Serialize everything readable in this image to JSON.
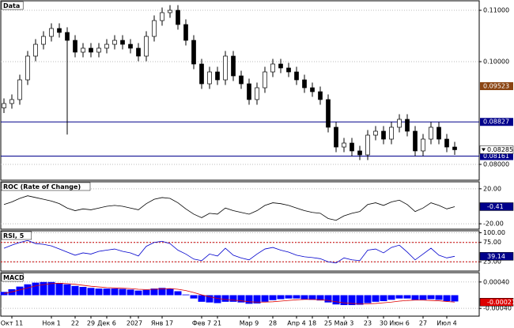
{
  "chart_data": [
    {
      "type": "candlestick",
      "title": "Data",
      "categories": [
        null,
        "Окт 11",
        null,
        null,
        null,
        null,
        "Ноя 1",
        null,
        null,
        "22",
        null,
        "29",
        null,
        "Дек 6",
        null,
        null,
        "20",
        "27",
        null,
        null,
        "Янв 17",
        null,
        null,
        null,
        null,
        "Фев 7",
        null,
        "21",
        null,
        null,
        null,
        "Мар 9",
        null,
        null,
        "28",
        null,
        null,
        "Апр 4",
        null,
        "18",
        null,
        "25",
        null,
        "Май 3",
        null,
        null,
        "23",
        null,
        "30",
        null,
        "Июн 6",
        null,
        null,
        "27",
        null,
        null,
        "Июл 4",
        null
      ],
      "open": [
        0.091,
        0.09185,
        0.09262,
        0.09646,
        0.10108,
        0.10338,
        0.10492,
        0.10646,
        0.10569,
        0.10415,
        0.10185,
        0.10262,
        0.10185,
        0.10262,
        0.10338,
        0.10415,
        0.10338,
        0.10262,
        0.10108,
        0.10492,
        0.108,
        0.10954,
        0.11,
        0.10723,
        0.10415,
        0.09954,
        0.09569,
        0.098,
        0.09646,
        0.10108,
        0.09723,
        0.09569,
        0.09262,
        0.09492,
        0.098,
        0.09954,
        0.09877,
        0.098,
        0.09646,
        0.09492,
        0.09415,
        0.09262,
        0.08723,
        0.08338,
        0.08415,
        0.08262,
        0.08185,
        0.08569,
        0.08646,
        0.08492,
        0.08723,
        0.08877,
        0.08646,
        0.08262,
        0.08492,
        0.08723,
        0.08492,
        0.08338
      ],
      "high": [
        0.09285,
        0.09362,
        0.09746,
        0.10208,
        0.10438,
        0.10592,
        0.10746,
        0.10746,
        0.10669,
        0.10515,
        0.10362,
        0.10362,
        0.10362,
        0.10438,
        0.10515,
        0.10515,
        0.10438,
        0.10362,
        0.10592,
        0.109,
        0.11054,
        0.111,
        0.111,
        0.10823,
        0.10515,
        0.10054,
        0.099,
        0.099,
        0.10208,
        0.10208,
        0.09823,
        0.09669,
        0.09592,
        0.099,
        0.10054,
        0.10054,
        0.09977,
        0.099,
        0.09746,
        0.09592,
        0.09515,
        0.09362,
        0.08823,
        0.08515,
        0.08515,
        0.08362,
        0.08669,
        0.08746,
        0.08746,
        0.08823,
        0.08977,
        0.08977,
        0.08746,
        0.08592,
        0.08823,
        0.08823,
        0.08592,
        0.08438
      ],
      "low": [
        0.09,
        0.09085,
        0.09162,
        0.09546,
        0.10008,
        0.10238,
        0.10392,
        0.10469,
        0.0858,
        0.10085,
        0.10085,
        0.10085,
        0.10085,
        0.10162,
        0.10238,
        0.10238,
        0.10162,
        0.10008,
        0.10008,
        0.10392,
        0.107,
        0.10854,
        0.10623,
        0.10315,
        0.09854,
        0.09469,
        0.09469,
        0.09546,
        0.09546,
        0.09623,
        0.09469,
        0.09162,
        0.09162,
        0.09392,
        0.097,
        0.09777,
        0.097,
        0.09546,
        0.09392,
        0.09315,
        0.09162,
        0.08623,
        0.08238,
        0.08238,
        0.08162,
        0.08085,
        0.08085,
        0.08469,
        0.08392,
        0.08392,
        0.08623,
        0.08546,
        0.08162,
        0.08162,
        0.08392,
        0.08392,
        0.08238,
        0.08185
      ],
      "close": [
        0.09185,
        0.09262,
        0.09646,
        0.10108,
        0.10338,
        0.10492,
        0.10646,
        0.10569,
        0.10415,
        0.10185,
        0.10262,
        0.10185,
        0.10262,
        0.10338,
        0.10415,
        0.10338,
        0.10262,
        0.10108,
        0.10492,
        0.108,
        0.10954,
        0.11,
        0.10723,
        0.10415,
        0.09954,
        0.09569,
        0.098,
        0.09646,
        0.10108,
        0.09723,
        0.09569,
        0.09262,
        0.09492,
        0.098,
        0.09954,
        0.09877,
        0.098,
        0.09646,
        0.09492,
        0.09415,
        0.09262,
        0.08723,
        0.08338,
        0.08415,
        0.08262,
        0.08185,
        0.08569,
        0.08646,
        0.08492,
        0.08723,
        0.08877,
        0.08646,
        0.08262,
        0.08492,
        0.08723,
        0.08492,
        0.08338,
        0.08285
      ],
      "ylim": [
        0.07692,
        0.11185
      ],
      "yticks": [
        {
          "value": 0.08,
          "label": "0.08000"
        },
        {
          "value": 0.1,
          "label": "0.10000"
        },
        {
          "value": 0.11,
          "label": "0.11000"
        }
      ],
      "levels": [
        0.08827,
        0.08161
      ],
      "level_color": "#00008b",
      "price_labels": [
        {
          "value": 0.09523,
          "color": "#8b4513"
        }
      ],
      "grid": true
    },
    {
      "type": "line",
      "title": "ROC (Rate of Change)",
      "color": "#000000",
      "values": [
        2,
        5,
        9,
        12,
        10,
        8,
        6,
        3,
        -2,
        -5,
        -3,
        -4,
        -2,
        0,
        1,
        0,
        -2,
        -4,
        3,
        8,
        10,
        9,
        4,
        -3,
        -9,
        -13,
        -8,
        -9,
        -2,
        -5,
        -7,
        -9,
        -5,
        1,
        4,
        3,
        1,
        -2,
        -5,
        -7,
        -8,
        -14,
        -16,
        -11,
        -8,
        -6,
        2,
        4,
        1,
        5,
        7,
        2,
        -6,
        -2,
        4,
        1,
        -3,
        -0.41
      ],
      "ylim": [
        -26.2,
        28
      ],
      "yticks": [
        {
          "value": -20,
          "label": "-20.00"
        },
        {
          "value": 20,
          "label": "20.00"
        }
      ],
      "grid": true
    },
    {
      "type": "line",
      "title": "RSI, 5",
      "color": "#0000cd",
      "values": [
        60,
        68,
        75,
        80,
        72,
        70,
        66,
        58,
        50,
        42,
        48,
        45,
        52,
        55,
        58,
        52,
        48,
        40,
        65,
        75,
        78,
        72,
        55,
        45,
        32,
        28,
        45,
        40,
        60,
        42,
        35,
        30,
        45,
        58,
        62,
        55,
        50,
        42,
        38,
        36,
        33,
        25,
        22,
        35,
        30,
        28,
        55,
        58,
        48,
        62,
        68,
        50,
        30,
        45,
        60,
        42,
        35,
        39.14
      ],
      "ylim": [
        1,
        105
      ],
      "yticks": [
        {
          "value": 25,
          "label": "25.00"
        },
        {
          "value": 75,
          "label": "75.00"
        },
        {
          "value": 100,
          "label": "100.00"
        }
      ],
      "levels": [
        75,
        25
      ],
      "level_color": "#cc0000"
    },
    {
      "type": "macd",
      "title": "MACD",
      "series": [
        {
          "kind": "bar",
          "color": "#0000ff",
          "values": [
            0.0001,
            0.00018,
            0.00026,
            0.00033,
            0.00038,
            0.0004,
            0.0004,
            0.00037,
            0.00033,
            0.00028,
            0.00025,
            0.00022,
            0.0002,
            0.0002,
            0.0002,
            0.00019,
            0.00017,
            0.00014,
            0.00016,
            0.0002,
            0.00022,
            0.0002,
            0.00012,
            2e-05,
            -0.0001,
            -0.0002,
            -0.00022,
            -0.00024,
            -0.0002,
            -0.0002,
            -0.00022,
            -0.00026,
            -0.00025,
            -0.0002,
            -0.00015,
            -0.00012,
            -0.0001,
            -0.0001,
            -0.00012,
            -0.00014,
            -0.00016,
            -0.00022,
            -0.00028,
            -0.0003,
            -0.0003,
            -0.00029,
            -0.00024,
            -0.0002,
            -0.00018,
            -0.00014,
            -0.0001,
            -0.0001,
            -0.00014,
            -0.00014,
            -0.00012,
            -0.00014,
            -0.00018,
            -0.00019
          ]
        },
        {
          "kind": "line",
          "color": "#dd0000",
          "values": [
            5e-05,
            0.0001,
            0.00016,
            0.00022,
            0.00028,
            0.00032,
            0.00035,
            0.00036,
            0.00035,
            0.00033,
            0.0003,
            0.00027,
            0.00025,
            0.00023,
            0.00022,
            0.00021,
            0.0002,
            0.00018,
            0.00017,
            0.00018,
            0.00019,
            0.0002,
            0.00018,
            0.00014,
            8e-05,
            1e-05,
            -5e-05,
            -0.0001,
            -0.00013,
            -0.00015,
            -0.00017,
            -0.0002,
            -0.00021,
            -0.00021,
            -0.0002,
            -0.00018,
            -0.00016,
            -0.00014,
            -0.00013,
            -0.00013,
            -0.00014,
            -0.00016,
            -0.0002,
            -0.00023,
            -0.00025,
            -0.00026,
            -0.00026,
            -0.00025,
            -0.00023,
            -0.00021,
            -0.00018,
            -0.00016,
            -0.00015,
            -0.00015,
            -0.00016,
            -0.00017,
            -0.00019,
            -0.00021
          ]
        }
      ],
      "ylim": [
        -0.000635,
        0.000682
      ],
      "yticks": [
        {
          "value": -0.0004,
          "label": "-0.00040"
        },
        {
          "value": 0.0004,
          "label": "0.00040"
        }
      ]
    }
  ]
}
